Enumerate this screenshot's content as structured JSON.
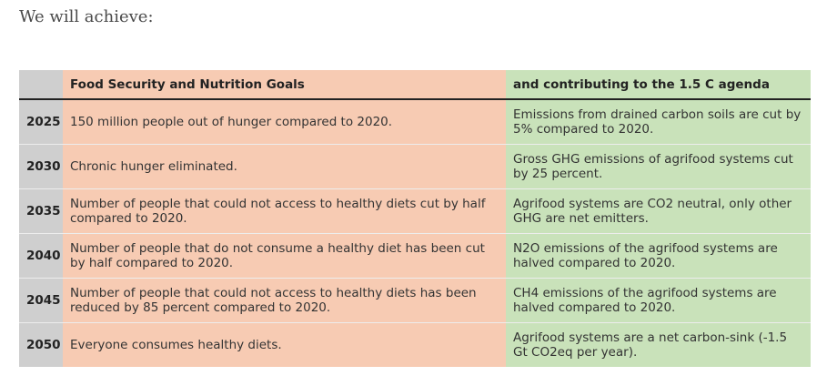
{
  "intro": "We will achieve:",
  "table": {
    "headers": {
      "year": "",
      "food": "Food Security and Nutrition Goals",
      "climate": "and contributing to the 1.5 C agenda"
    },
    "rows": [
      {
        "year": "2025",
        "food": "150 million people out of hunger compared to 2020.",
        "climate": "Emissions from drained carbon soils are cut by 5% compared to 2020."
      },
      {
        "year": "2030",
        "food": "Chronic hunger eliminated.",
        "climate": "Gross GHG emissions of agrifood systems cut by 25 percent."
      },
      {
        "year": "2035",
        "food": "Number of people that could not access to healthy diets cut by half compared to 2020.",
        "climate": "Agrifood systems are CO2 neutral, only other GHG are net emitters."
      },
      {
        "year": "2040",
        "food": "Number of people that do not consume a healthy diet has been cut by half compared to 2020.",
        "climate": "N2O emissions of the agrifood systems are halved compared to 2020."
      },
      {
        "year": "2045",
        "food": "Number of people that could not access to healthy diets has been reduced by 85 percent compared to 2020.",
        "climate": "CH4 emissions of the agrifood systems are halved compared to 2020."
      },
      {
        "year": "2050",
        "food": "Everyone consumes healthy diets.",
        "climate": "Agrifood systems are a net carbon-sink (-1.5 Gt CO2eq per year)."
      }
    ]
  },
  "colors": {
    "year_column": "#cfcfcf",
    "food_column": "#f7cbb3",
    "climate_column": "#c9e2ba"
  }
}
